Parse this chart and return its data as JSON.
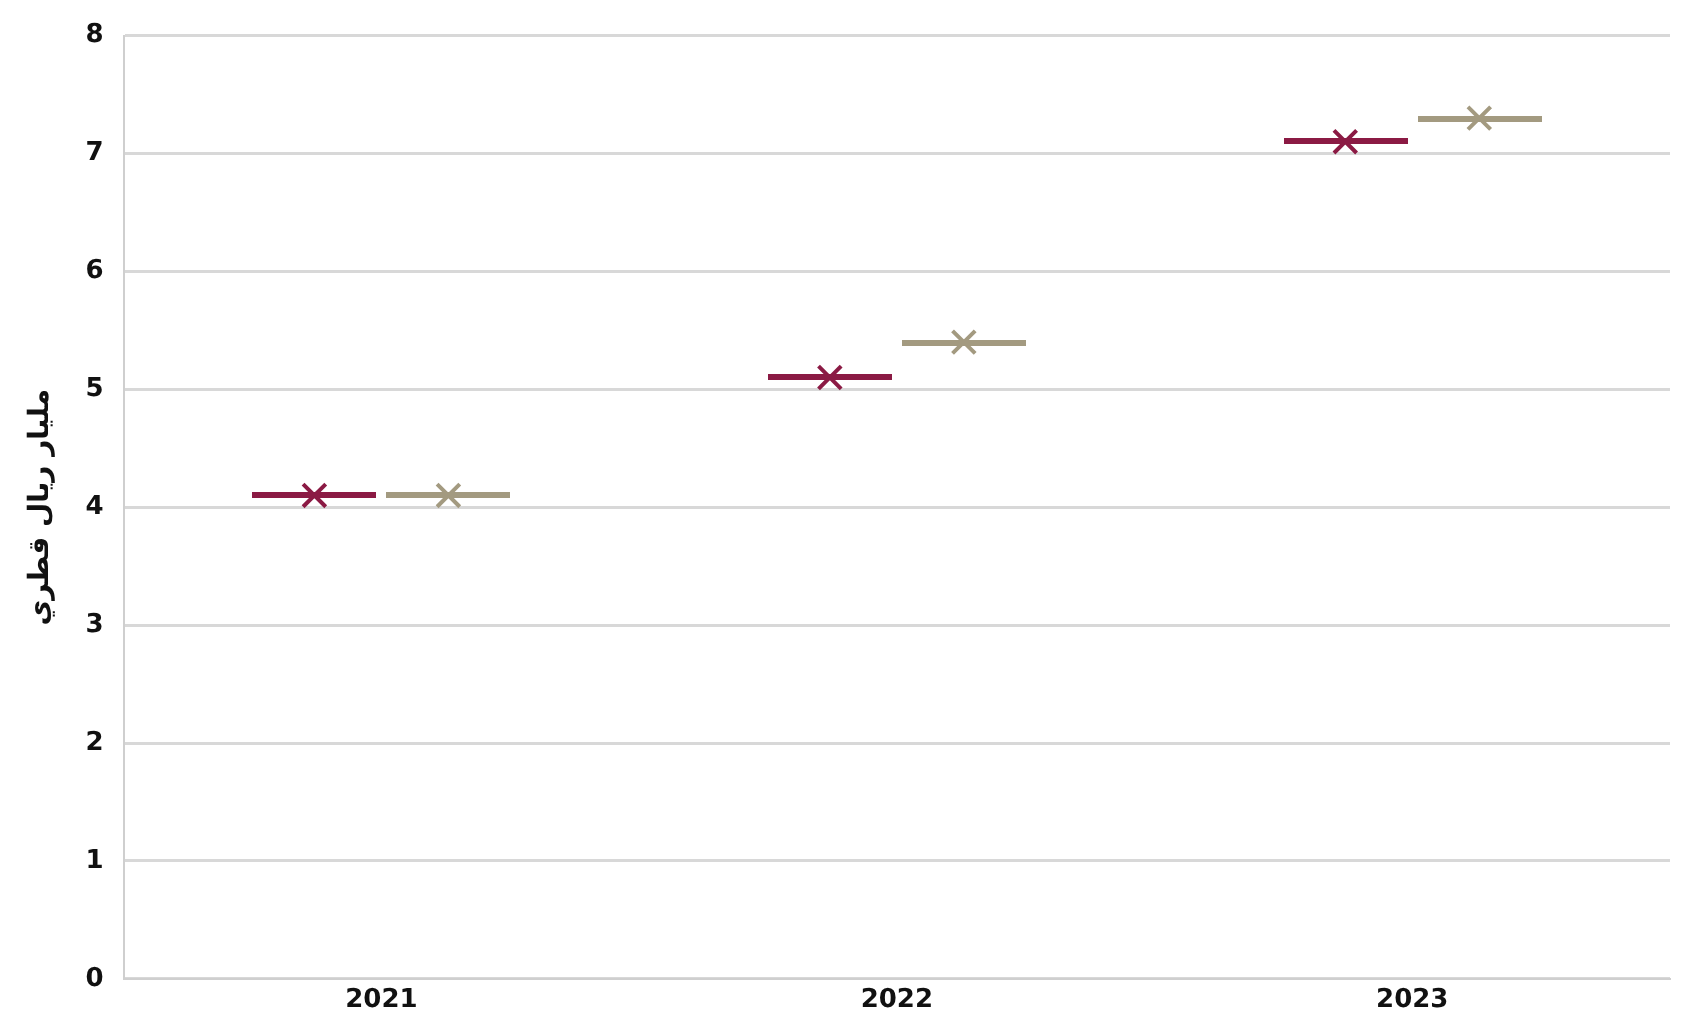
{
  "chart_data": {
    "type": "scatter",
    "ylabel": "مليار ريال قطري",
    "categories": [
      "2021",
      "2022",
      "2023"
    ],
    "series": [
      {
        "color": "#8b1a44",
        "values": [
          4.1,
          5.1,
          7.1
        ]
      },
      {
        "color": "#a39a80",
        "values": [
          4.1,
          5.4,
          7.3
        ]
      }
    ],
    "ylim": [
      0,
      8
    ],
    "yticks": [
      0,
      1,
      2,
      3,
      4,
      5,
      6,
      7,
      8
    ],
    "grid": "y",
    "legend": false,
    "marker": "cross"
  }
}
